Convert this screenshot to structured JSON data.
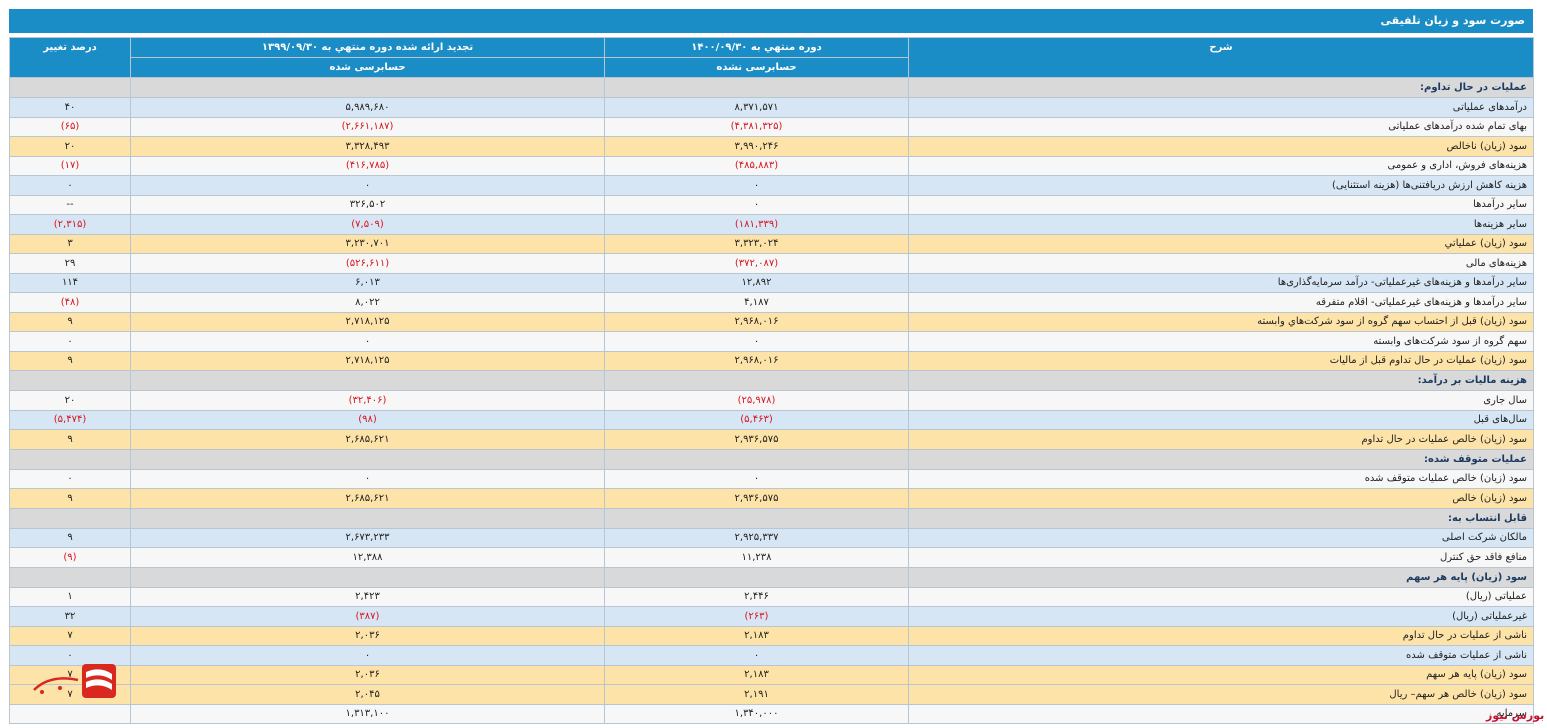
{
  "title": "صورت سود و زیان تلفیقی",
  "headers": {
    "desc": "شرح",
    "current_period": "دوره منتهي به ۱۴۰۰/۰۹/۳۰",
    "current_audit": "حسابرسی نشده",
    "prior_period": "تجدید ارائه شده دوره منتهي به ۱۳۹۹/۰۹/۳۰",
    "prior_audit": "حسابرسی شده",
    "change": "درصد تغییر"
  },
  "rows": [
    {
      "type": "section",
      "label": "عملیات در حال تداوم:"
    },
    {
      "style": "blue",
      "label": "درآمدهای عملیاتی",
      "cur": "۸,۳۷۱,۵۷۱",
      "prev": "۵,۹۸۹,۶۸۰",
      "chg": "۴۰"
    },
    {
      "style": "white",
      "label": "بهای تمام شده درآمدهای عملیاتی",
      "cur": "(۴,۳۸۱,۳۲۵)",
      "prev": "(۲,۶۶۱,۱۸۷)",
      "chg": "(۶۵)",
      "neg": true
    },
    {
      "style": "yel",
      "label": "سود (زيان) ناخالص",
      "cur": "۳,۹۹۰,۲۴۶",
      "prev": "۳,۳۲۸,۴۹۳",
      "chg": "۲۰"
    },
    {
      "style": "white",
      "label": "هزینه‌های فروش، اداری و عمومی",
      "cur": "(۴۸۵,۸۸۳)",
      "prev": "(۴۱۶,۷۸۵)",
      "chg": "(۱۷)",
      "neg": true
    },
    {
      "style": "blue",
      "label": "هزینه کاهش ارزش دریافتنی‌ها (هزینه استثنایی)",
      "cur": "۰",
      "prev": "۰",
      "chg": "۰"
    },
    {
      "style": "white",
      "label": "سایر درآمدها",
      "cur": "۰",
      "prev": "۳۲۶,۵۰۲",
      "chg": "--"
    },
    {
      "style": "blue",
      "label": "سایر هزینه‌ها",
      "cur": "(۱۸۱,۳۳۹)",
      "prev": "(۷,۵۰۹)",
      "chg": "(۲,۳۱۵)",
      "neg": true
    },
    {
      "style": "yel",
      "label": "سود (زيان) عملياتي",
      "cur": "۳,۳۲۳,۰۲۴",
      "prev": "۳,۲۳۰,۷۰۱",
      "chg": "۳"
    },
    {
      "style": "white",
      "label": "هزینه‌های مالی",
      "cur": "(۳۷۲,۰۸۷)",
      "prev": "(۵۲۶,۶۱۱)",
      "chg": "۲۹",
      "neg": true,
      "chgpos": true
    },
    {
      "style": "blue",
      "label": "سایر درآمدها و هزینه‌های غیرعملیاتی- درآمد سرمایه‌گذاری‌ها",
      "cur": "۱۲,۸۹۲",
      "prev": "۶,۰۱۳",
      "chg": "۱۱۴"
    },
    {
      "style": "white",
      "label": "سایر درآمدها و هزینه‌های غیرعملیاتی- اقلام متفرقه",
      "cur": "۴,۱۸۷",
      "prev": "۸,۰۲۲",
      "chg": "(۴۸)",
      "negchg": true
    },
    {
      "style": "yel",
      "label": "سود (زيان) قبل از احتساب سهم گروه از سود شرکت‌هاي وابسته",
      "cur": "۲,۹۶۸,۰۱۶",
      "prev": "۲,۷۱۸,۱۲۵",
      "chg": "۹"
    },
    {
      "style": "white",
      "label": "سهم گروه از سود شرکت‌های وابسته",
      "cur": "۰",
      "prev": "۰",
      "chg": "۰"
    },
    {
      "style": "yel",
      "label": "سود (زيان) عمليات در حال تداوم قبل از ماليات",
      "cur": "۲,۹۶۸,۰۱۶",
      "prev": "۲,۷۱۸,۱۲۵",
      "chg": "۹"
    },
    {
      "type": "section",
      "label": "هزینه مالیات بر درآمد:"
    },
    {
      "style": "white",
      "label": "سال جاری",
      "cur": "(۲۵,۹۷۸)",
      "prev": "(۳۲,۴۰۶)",
      "chg": "۲۰",
      "neg": true,
      "chgpos": true
    },
    {
      "style": "blue",
      "label": "سال‌های قبل",
      "cur": "(۵,۴۶۳)",
      "prev": "(۹۸)",
      "chg": "(۵,۴۷۴)",
      "neg": true
    },
    {
      "style": "yel",
      "label": "سود (زيان) خالص عمليات در حال تداوم",
      "cur": "۲,۹۳۶,۵۷۵",
      "prev": "۲,۶۸۵,۶۲۱",
      "chg": "۹"
    },
    {
      "type": "section",
      "label": "عملیات متوقف شده:"
    },
    {
      "style": "white",
      "label": "سود (زيان) خالص عمليات متوقف شده",
      "cur": "۰",
      "prev": "۰",
      "chg": "۰"
    },
    {
      "style": "yel",
      "label": "سود (زيان) خالص",
      "cur": "۲,۹۳۶,۵۷۵",
      "prev": "۲,۶۸۵,۶۲۱",
      "chg": "۹"
    },
    {
      "type": "section",
      "label": "قابل انتساب به:"
    },
    {
      "style": "blue",
      "label": "مالکان شرکت اصلی",
      "cur": "۲,۹۲۵,۳۳۷",
      "prev": "۲,۶۷۳,۲۳۳",
      "chg": "۹"
    },
    {
      "style": "white",
      "label": "منافع فاقد حق کنترل",
      "cur": "۱۱,۲۳۸",
      "prev": "۱۲,۳۸۸",
      "chg": "(۹)",
      "negchg": true
    },
    {
      "type": "section",
      "label": "سود (زیان) پایه هر سهم"
    },
    {
      "style": "white",
      "label": "عملیاتی (ریال)",
      "cur": "۲,۴۴۶",
      "prev": "۲,۴۲۳",
      "chg": "۱"
    },
    {
      "style": "blue",
      "label": "غیرعملیاتی (ریال)",
      "cur": "(۲۶۳)",
      "prev": "(۳۸۷)",
      "chg": "۳۲",
      "neg": true,
      "chgpos": true
    },
    {
      "style": "yel",
      "label": "ناشی از عملیات در حال تداوم",
      "cur": "۲,۱۸۳",
      "prev": "۲,۰۳۶",
      "chg": "۷"
    },
    {
      "style": "blue",
      "label": "ناشی از عملیات متوقف شده",
      "cur": "۰",
      "prev": "۰",
      "chg": "۰"
    },
    {
      "style": "yel",
      "label": "سود (زيان) پایه هر سهم",
      "cur": "۲,۱۸۳",
      "prev": "۲,۰۳۶",
      "chg": "۷"
    },
    {
      "style": "yel",
      "label": "سود (زيان) خالص هر سهم– ريال",
      "cur": "۲,۱۹۱",
      "prev": "۲,۰۴۵",
      "chg": "۷"
    },
    {
      "style": "white",
      "label": "سرمایه",
      "cur": "۱,۳۴۰,۰۰۰",
      "prev": "۱,۳۱۳,۱۰۰",
      "chg": ""
    }
  ],
  "watermark": "بورس نیوز",
  "colors": {
    "header": "#1a8cc6",
    "negative": "#d6151f",
    "blue": "#d6e6f5",
    "yellow": "#fde3a7"
  }
}
